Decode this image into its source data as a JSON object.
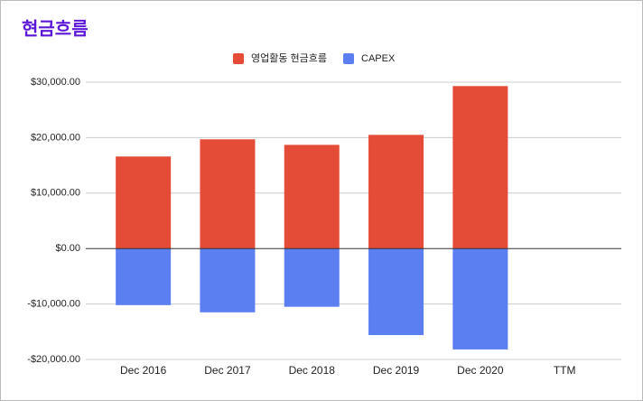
{
  "chart_data": {
    "type": "bar",
    "title": "현금흐름",
    "categories": [
      "Dec 2016",
      "Dec 2017",
      "Dec 2018",
      "Dec 2019",
      "Dec 2020",
      "TTM"
    ],
    "series": [
      {
        "name": "영업활동 현금흐름",
        "color": "#e54c37",
        "values": [
          16600,
          19700,
          18700,
          20500,
          29300,
          null
        ]
      },
      {
        "name": "CAPEX",
        "color": "#5b7ff1",
        "values": [
          -10200,
          -11500,
          -10500,
          -15600,
          -18200,
          null
        ]
      }
    ],
    "stacked": true,
    "ylim": [
      -20000,
      30000
    ],
    "yticks": [
      {
        "value": -20000,
        "label": "-$20,000.00"
      },
      {
        "value": -10000,
        "label": "-$10,000.00"
      },
      {
        "value": 0,
        "label": "$0.00"
      },
      {
        "value": 10000,
        "label": "$10,000.00"
      },
      {
        "value": 20000,
        "label": "$20,000.00"
      },
      {
        "value": 30000,
        "label": "$30,000.00"
      }
    ],
    "grid": true,
    "legend": "top"
  }
}
